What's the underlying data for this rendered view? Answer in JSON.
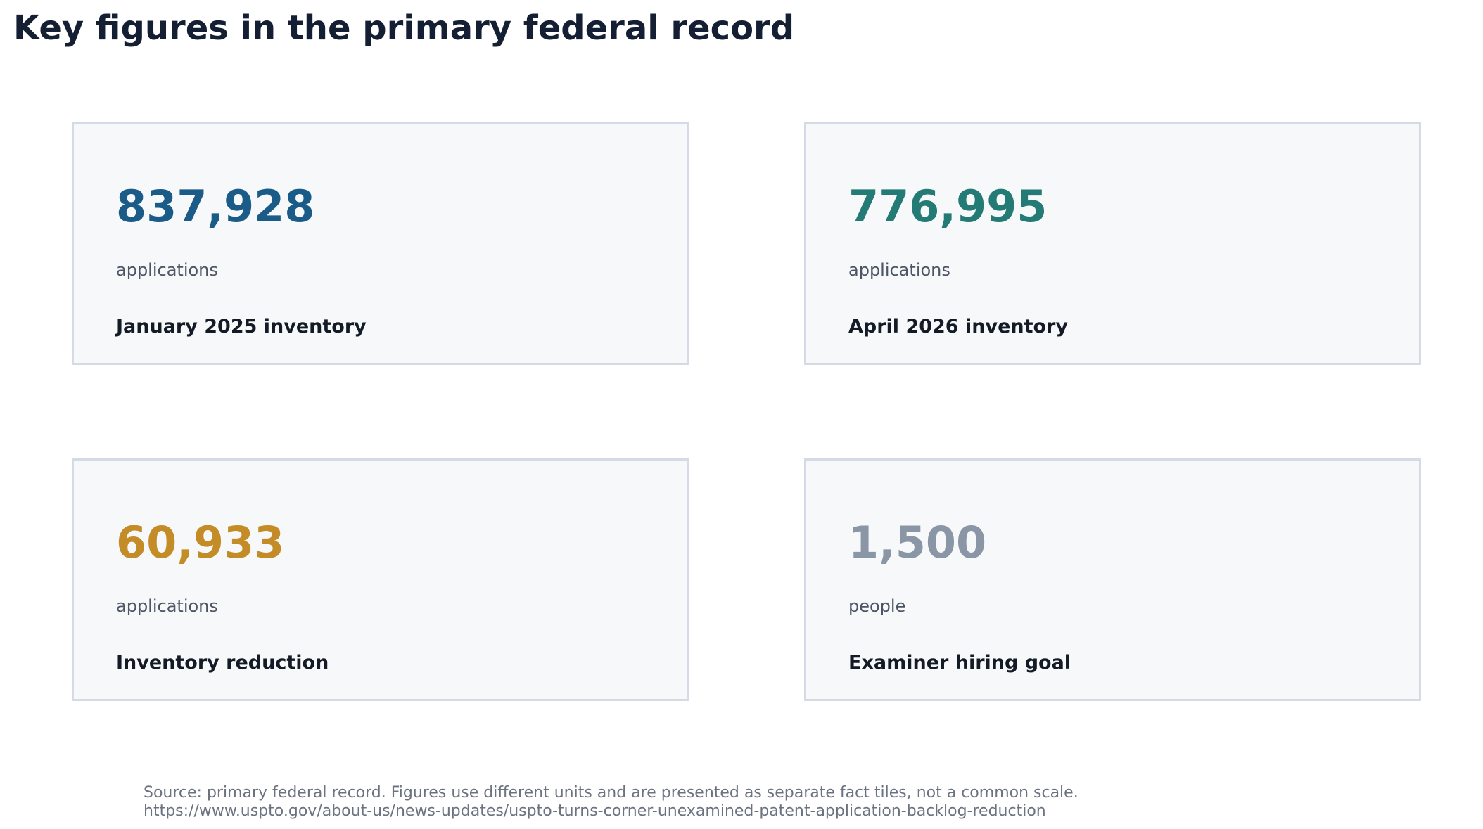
{
  "title": "Key figures in the primary federal record",
  "chart_data": {
    "type": "table",
    "title": "Key figures in the primary federal record",
    "tiles": [
      {
        "value": 837928,
        "value_text": "837,928",
        "unit": "applications",
        "label": "January 2025 inventory",
        "color": "#1b5b87"
      },
      {
        "value": 776995,
        "value_text": "776,995",
        "unit": "applications",
        "label": "April 2026 inventory",
        "color": "#247a74"
      },
      {
        "value": 60933,
        "value_text": "60,933",
        "unit": "applications",
        "label": "Inventory reduction",
        "color": "#c48c26"
      },
      {
        "value": 1500,
        "value_text": "1,500",
        "unit": "people",
        "label": "Examiner hiring goal",
        "color": "#8a96a6"
      }
    ]
  },
  "footer": {
    "note": "Source: primary federal record. Figures use different units and are presented as separate fact tiles, not a common scale.",
    "url": "https://www.uspto.gov/about-us/news-updates/uspto-turns-corner-unexamined-patent-application-backlog-reduction"
  }
}
